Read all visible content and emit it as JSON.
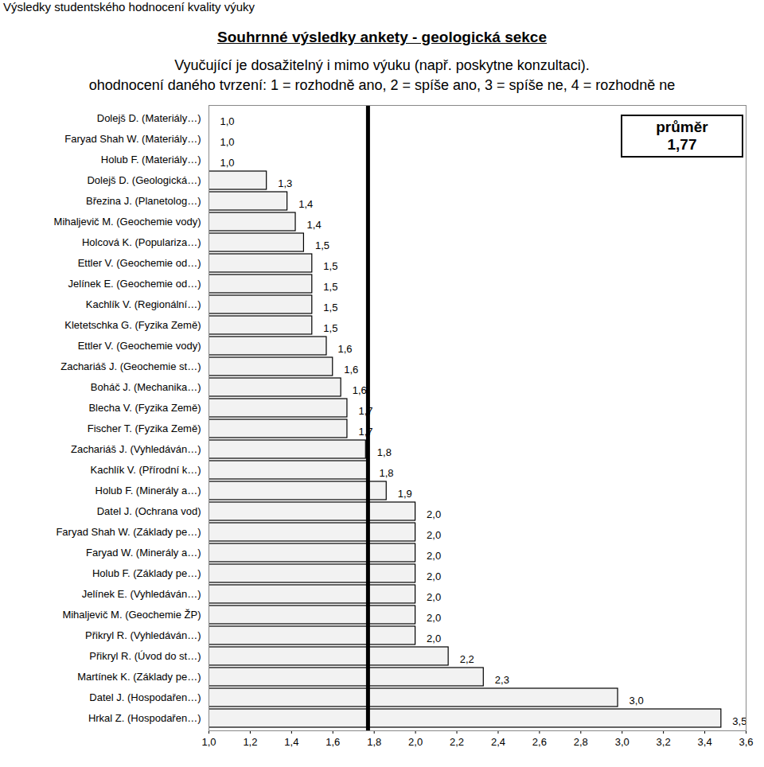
{
  "chart_data": {
    "type": "bar",
    "orientation": "horizontal",
    "header": "Výsledky studentského hodnocení kvality výuky",
    "title": "Souhrnné výsledky ankety - geologická sekce",
    "subtitle": [
      "Vyučující je dosažitelný i mimo výuku (např. poskytne konzultaci).",
      "ohodnocení daného tvrzení: 1 = rozhodně ano, 2 = spíše ano, 3 = spíše ne, 4 = rozhodně ne"
    ],
    "categories": [
      "Dolejš D. (Materiály…)",
      "Faryad Shah W. (Materiály…)",
      "Holub F. (Materiály…)",
      "Dolejš D. (Geologická…)",
      "Březina J. (Planetolog…)",
      "Mihaljevič M. (Geochemie vody)",
      "Holcová K. (Populariza…)",
      "Ettler V. (Geochemie od…)",
      "Jelínek E. (Geochemie od…)",
      "Kachlík V. (Regionální…)",
      "Kletetschka G. (Fyzika Země)",
      "Ettler V. (Geochemie vody)",
      "Zachariáš J. (Geochemie st…)",
      "Boháč J. (Mechanika…)",
      "Blecha V. (Fyzika Země)",
      "Fischer T. (Fyzika Země)",
      "Zachariáš J. (Vyhledáván…)",
      "Kachlík V. (Přírodní k…)",
      "Holub F. (Minerály a…)",
      "Datel J. (Ochrana vod)",
      "Faryad Shah W. (Základy pe…)",
      "Faryad W. (Minerály a…)",
      "Holub F. (Základy pe…)",
      "Jelínek E. (Vyhledáván…)",
      "Mihaljevič M. (Geochemie ŽP)",
      "Přikryl R. (Vyhledáván…)",
      "Přikryl R. (Úvod do st…)",
      "Martínek K. (Základy pe…)",
      "Datel J. (Hospodařen…)",
      "Hrkal Z. (Hospodařen…)"
    ],
    "values": [
      1.0,
      1.0,
      1.0,
      1.28,
      1.38,
      1.42,
      1.46,
      1.5,
      1.5,
      1.5,
      1.5,
      1.57,
      1.6,
      1.64,
      1.67,
      1.67,
      1.76,
      1.77,
      1.86,
      2.0,
      2.0,
      2.0,
      2.0,
      2.0,
      2.0,
      2.0,
      2.16,
      2.33,
      2.98,
      3.48
    ],
    "value_labels": [
      "1,0",
      "1,0",
      "1,0",
      "1,3",
      "1,4",
      "1,4",
      "1,5",
      "1,5",
      "1,5",
      "1,5",
      "1,5",
      "1,6",
      "1,6",
      "1,6",
      "1,7",
      "1,7",
      "1,8",
      "1,8",
      "1,9",
      "2,0",
      "2,0",
      "2,0",
      "2,0",
      "2,0",
      "2,0",
      "2,0",
      "2,2",
      "2,3",
      "3,0",
      "3,5"
    ],
    "data_labels": true,
    "color": "#f2f2f2",
    "grid": false,
    "xlim": [
      1.0,
      3.6
    ],
    "xticks": [
      {
        "value": 1.0,
        "label": "1,0"
      },
      {
        "value": 1.2,
        "label": "1,2"
      },
      {
        "value": 1.4,
        "label": "1,4"
      },
      {
        "value": 1.6,
        "label": "1,6"
      },
      {
        "value": 1.8,
        "label": "1,8"
      },
      {
        "value": 2.0,
        "label": "2,0"
      },
      {
        "value": 2.2,
        "label": "2,2"
      },
      {
        "value": 2.4,
        "label": "2,4"
      },
      {
        "value": 2.6,
        "label": "2,6"
      },
      {
        "value": 2.8,
        "label": "2,8"
      },
      {
        "value": 3.0,
        "label": "3,0"
      },
      {
        "value": 3.2,
        "label": "3,2"
      },
      {
        "value": 3.4,
        "label": "3,4"
      },
      {
        "value": 3.6,
        "label": "3,6"
      }
    ],
    "mean": {
      "value": 1.77,
      "label": "průměr",
      "value_label": "1,77"
    }
  }
}
